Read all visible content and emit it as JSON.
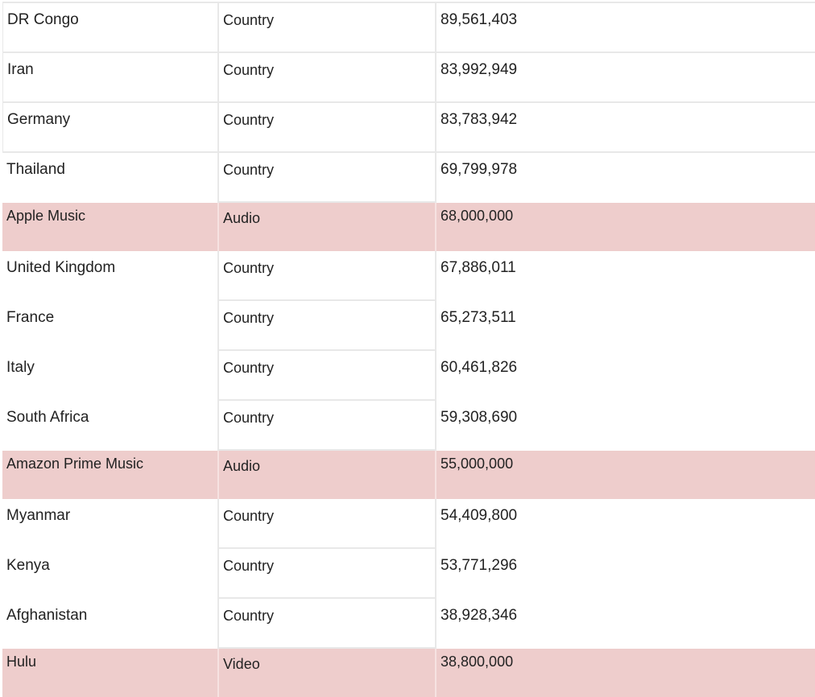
{
  "table": {
    "rows": [
      {
        "name": "DR Congo",
        "type": "Country",
        "value": "89,561,403",
        "style": "grid top"
      },
      {
        "name": "Iran",
        "type": "Country",
        "value": "83,992,949",
        "style": "grid"
      },
      {
        "name": "Germany",
        "type": "Country",
        "value": "83,783,942",
        "style": "grid"
      },
      {
        "name": "Thailand",
        "type": "Country",
        "value": "69,799,978",
        "style": "plain"
      },
      {
        "name": "Apple Music",
        "type": "Audio",
        "value": "68,000,000",
        "style": "highlight"
      },
      {
        "name": "United Kingdom",
        "type": "Country",
        "value": "67,886,011",
        "style": "plain"
      },
      {
        "name": "France",
        "type": "Country",
        "value": "65,273,511",
        "style": "plain"
      },
      {
        "name": "Italy",
        "type": "Country",
        "value": "60,461,826",
        "style": "plain"
      },
      {
        "name": "South Africa",
        "type": "Country",
        "value": "59,308,690",
        "style": "plain"
      },
      {
        "name": "Amazon Prime Music",
        "type": "Audio",
        "value": "55,000,000",
        "style": "highlight"
      },
      {
        "name": "Myanmar",
        "type": "Country",
        "value": "54,409,800",
        "style": "plain"
      },
      {
        "name": "Kenya",
        "type": "Country",
        "value": "53,771,296",
        "style": "plain"
      },
      {
        "name": "Afghanistan",
        "type": "Country",
        "value": "38,928,346",
        "style": "plain"
      },
      {
        "name": "Hulu",
        "type": "Video",
        "value": "38,800,000",
        "style": "highlight"
      }
    ]
  },
  "colors": {
    "highlight_bg": "#eecdcc",
    "grid_line": "#e8e8e8",
    "text": "#222222"
  }
}
